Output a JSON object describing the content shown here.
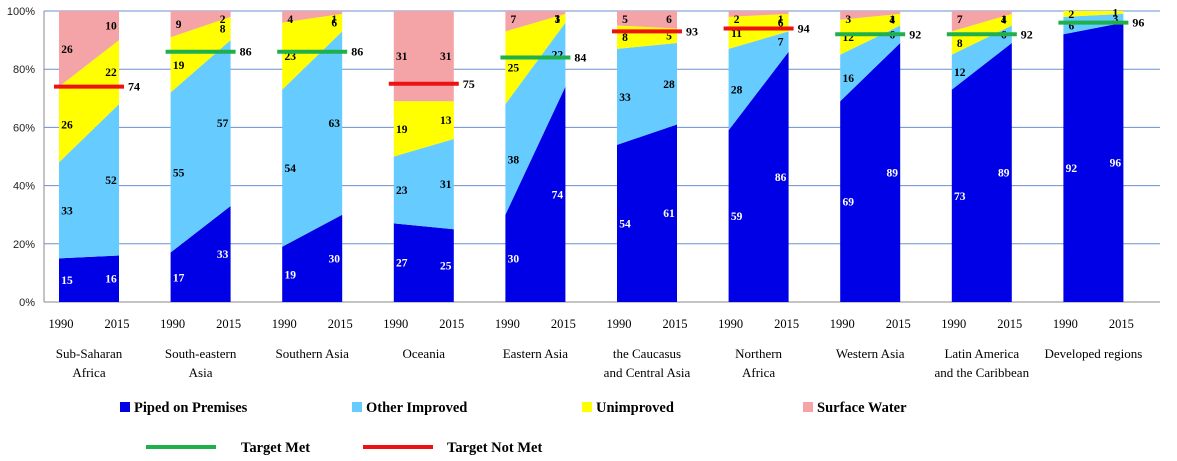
{
  "chart_data": {
    "type": "area",
    "stacked": true,
    "ylim": [
      0,
      100
    ],
    "yticks": [
      "0%",
      "20%",
      "40%",
      "60%",
      "80%",
      "100%"
    ],
    "grid": true,
    "legend_position": "bottom",
    "regions": [
      {
        "name": "Sub-Saharan Africa",
        "label_lines": [
          "Sub-Saharan",
          "Africa"
        ],
        "years": [
          "1990",
          "2015"
        ],
        "piped": [
          15,
          16
        ],
        "other": [
          33,
          52
        ],
        "unimproved": [
          26,
          22
        ],
        "surface": [
          26,
          10
        ],
        "target": {
          "value": 74,
          "status": "not_met"
        }
      },
      {
        "name": "South-eastern Asia",
        "label_lines": [
          "South-eastern",
          "Asia"
        ],
        "years": [
          "1990",
          "2015"
        ],
        "piped": [
          17,
          33
        ],
        "other": [
          55,
          57
        ],
        "unimproved": [
          19,
          8
        ],
        "surface": [
          9,
          2
        ],
        "target": {
          "value": 86,
          "status": "met"
        }
      },
      {
        "name": "Southern Asia",
        "label_lines": [
          "Southern Asia"
        ],
        "years": [
          "1990",
          "2015"
        ],
        "piped": [
          19,
          30
        ],
        "other": [
          54,
          63
        ],
        "unimproved": [
          23,
          6
        ],
        "surface": [
          4,
          1
        ],
        "target": {
          "value": 86,
          "status": "met"
        }
      },
      {
        "name": "Oceania",
        "label_lines": [
          "Oceania"
        ],
        "years": [
          "1990",
          "2015"
        ],
        "piped": [
          27,
          25
        ],
        "other": [
          23,
          31
        ],
        "unimproved": [
          19,
          13
        ],
        "surface": [
          31,
          31
        ],
        "target": {
          "value": 75,
          "status": "not_met"
        }
      },
      {
        "name": "Eastern Asia",
        "label_lines": [
          "Eastern Asia"
        ],
        "years": [
          "1990",
          "2015"
        ],
        "piped": [
          30,
          74
        ],
        "other": [
          38,
          22
        ],
        "unimproved": [
          25,
          3
        ],
        "surface": [
          7,
          1
        ],
        "target": {
          "value": 84,
          "status": "met"
        }
      },
      {
        "name": "the Caucasus and Central Asia",
        "label_lines": [
          "the Caucasus",
          "and Central Asia"
        ],
        "years": [
          "1990",
          "2015"
        ],
        "piped": [
          54,
          61
        ],
        "other": [
          33,
          28
        ],
        "unimproved": [
          8,
          5
        ],
        "surface": [
          5,
          6
        ],
        "target": {
          "value": 93,
          "status": "not_met"
        }
      },
      {
        "name": "Northern Africa",
        "label_lines": [
          "Northern",
          "Africa"
        ],
        "years": [
          "1990",
          "2015"
        ],
        "piped": [
          59,
          86
        ],
        "other": [
          28,
          7
        ],
        "unimproved": [
          11,
          6
        ],
        "surface": [
          2,
          1
        ],
        "target": {
          "value": 94,
          "status": "not_met"
        }
      },
      {
        "name": "Western Asia",
        "label_lines": [
          "Western Asia"
        ],
        "years": [
          "1990",
          "2015"
        ],
        "piped": [
          69,
          89
        ],
        "other": [
          16,
          6
        ],
        "unimproved": [
          12,
          4
        ],
        "surface": [
          3,
          1
        ],
        "target": {
          "value": 92,
          "status": "met"
        }
      },
      {
        "name": "Latin America and the Caribbean",
        "label_lines": [
          "Latin America",
          "and the Caribbean"
        ],
        "years": [
          "1990",
          "2015"
        ],
        "piped": [
          73,
          89
        ],
        "other": [
          12,
          6
        ],
        "unimproved": [
          8,
          4
        ],
        "surface": [
          7,
          1
        ],
        "target": {
          "value": 92,
          "status": "met"
        }
      },
      {
        "name": "Developed regions",
        "label_lines": [
          "Developed regions"
        ],
        "years": [
          "1990",
          "2015"
        ],
        "piped": [
          92,
          96
        ],
        "other": [
          6,
          3
        ],
        "unimproved": [
          2,
          1
        ],
        "surface": [
          0,
          0
        ],
        "target": {
          "value": 96,
          "status": "met"
        }
      }
    ],
    "series": [
      {
        "key": "piped",
        "name": "Piped on Premises",
        "color": "#0000E6",
        "label_color": "#FFFFFF"
      },
      {
        "key": "other",
        "name": "Other Improved",
        "color": "#66CCFF",
        "label_color": "#000000"
      },
      {
        "key": "unimproved",
        "name": "Unimproved",
        "color": "#FFFF00",
        "label_color": "#000000"
      },
      {
        "key": "surface",
        "name": "Surface Water",
        "color": "#F4A3A6",
        "label_color": "#000000"
      }
    ],
    "target_legend": [
      {
        "key": "met",
        "name": "Target Met",
        "color": "#1FAF4B"
      },
      {
        "key": "not_met",
        "name": "Target Not Met",
        "color": "#EE1111"
      }
    ]
  }
}
